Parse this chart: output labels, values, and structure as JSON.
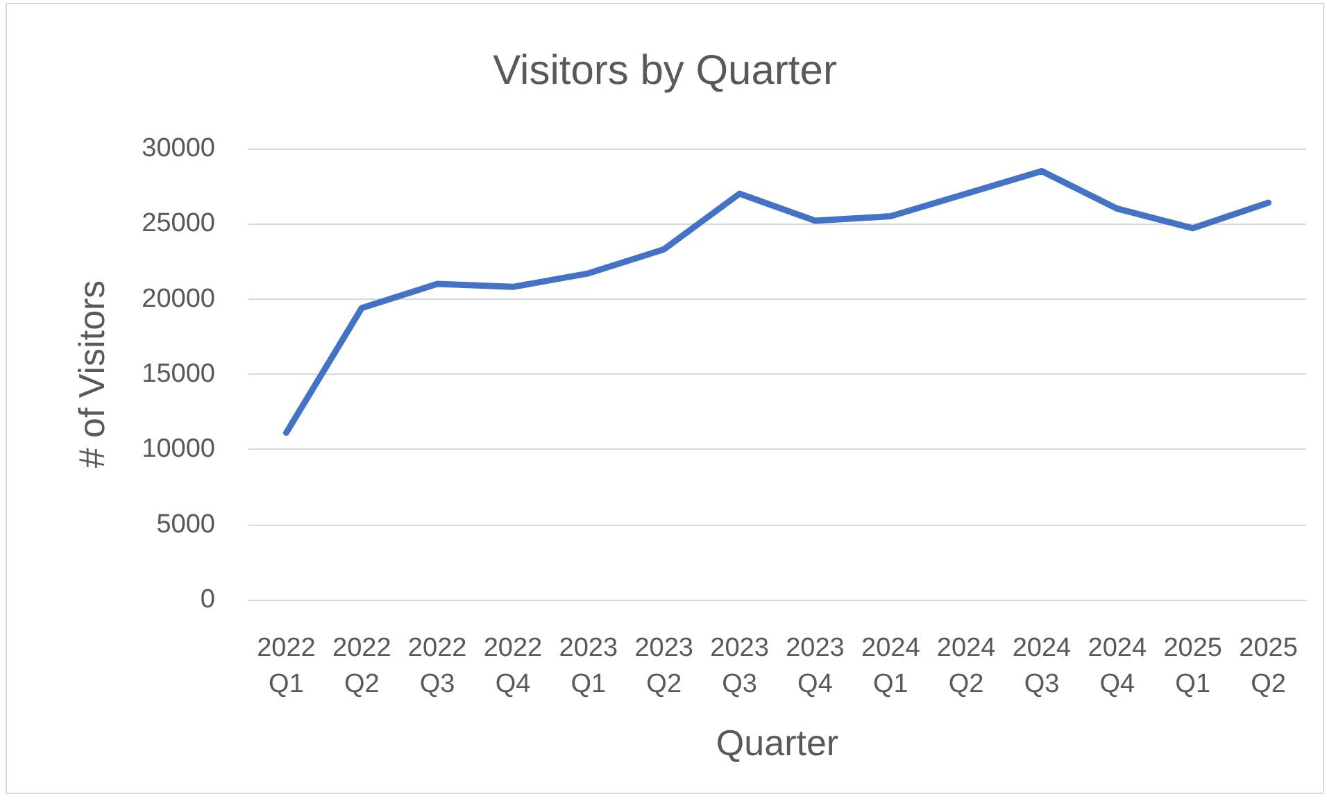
{
  "chart_data": {
    "type": "line",
    "title": "Visitors by Quarter",
    "xlabel": "Quarter",
    "ylabel": "# of Visitors",
    "categories": [
      "2022 Q1",
      "2022 Q2",
      "2022 Q3",
      "2022 Q4",
      "2023 Q1",
      "2023 Q2",
      "2023 Q3",
      "2023 Q4",
      "2024 Q1",
      "2024 Q2",
      "2024 Q3",
      "2024 Q4",
      "2025 Q1",
      "2025 Q2"
    ],
    "series": [
      {
        "color": "#4472c4",
        "values": [
          11100,
          19400,
          21000,
          20800,
          21700,
          23300,
          27000,
          25200,
          25500,
          27000,
          28500,
          26000,
          24700,
          26400
        ]
      }
    ],
    "ylim": [
      0,
      30000
    ],
    "yticks": [
      0,
      5000,
      10000,
      15000,
      20000,
      25000,
      30000
    ],
    "grid": "y",
    "marker": "none",
    "line_style": "solid"
  }
}
